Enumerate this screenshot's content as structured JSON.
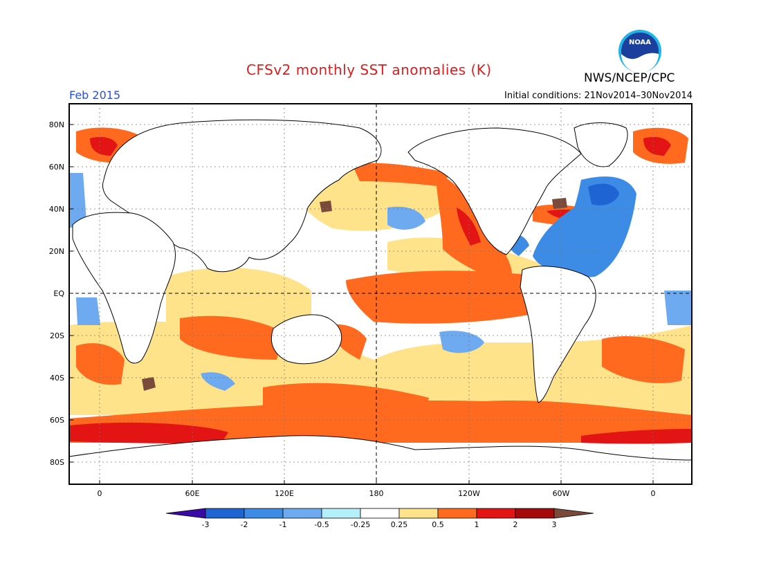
{
  "header": {
    "title": "CFSv2 monthly SST anomalies (K)",
    "agency": "NWS/NCEP/CPC",
    "month": "Feb 2015",
    "initial_conditions": "Initial conditions: 21Nov2014–30Nov2014"
  },
  "logo": {
    "icon": "noaa-logo-icon",
    "text": "NOAA"
  },
  "map": {
    "lat_ticks": [
      "80N",
      "60N",
      "40N",
      "20N",
      "EQ",
      "20S",
      "40S",
      "60S",
      "80S"
    ],
    "lon_ticks": [
      "0",
      "60E",
      "120E",
      "180",
      "120W",
      "60W",
      "0"
    ],
    "reference_lines": [
      "equator-dashed",
      "dateline-dashed"
    ]
  },
  "colorbar": {
    "labels": [
      "-3",
      "-2",
      "-1",
      "-0.5",
      "-0.25",
      "0.25",
      "0.5",
      "1",
      "2",
      "3"
    ],
    "colors": [
      "#3a0aa6",
      "#1e64d2",
      "#3c8ce6",
      "#6eaaf0",
      "#b4f0fa",
      "#ffffff",
      "#ffe38a",
      "#ff6a1e",
      "#e31414",
      "#a50a0a",
      "#7a4a3a"
    ]
  },
  "colors": {
    "land": "#ffffff",
    "warm": "#ff6a1e",
    "cold": "#3c8ce6",
    "title_red": "#d81e1e",
    "month_blue": "#2b4fd8"
  }
}
